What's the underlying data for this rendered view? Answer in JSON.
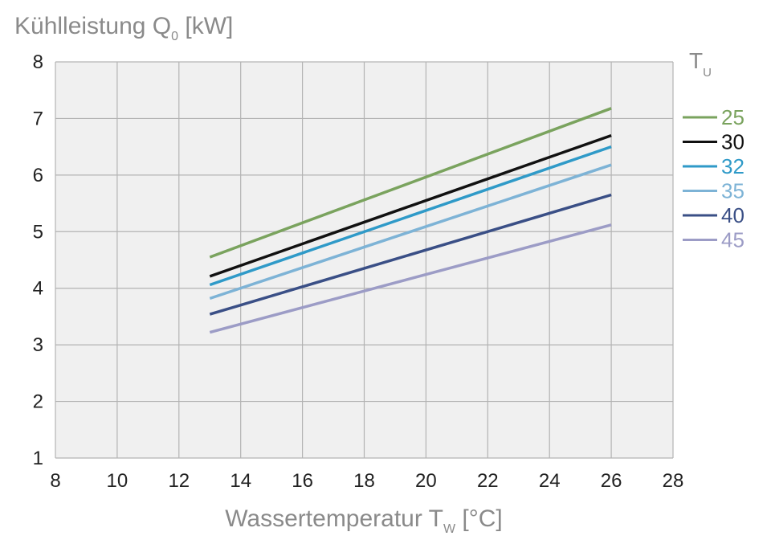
{
  "chart_data": {
    "type": "line",
    "title": "",
    "ylabel": {
      "main": "Kühlleistung Q",
      "sub": "0",
      "unit": " [kW]"
    },
    "xlabel": {
      "main": "Wassertemperatur T",
      "sub": "W",
      "unit": " [°C]"
    },
    "xlim": [
      8,
      28
    ],
    "ylim": [
      1,
      8
    ],
    "xticks": [
      8,
      10,
      12,
      14,
      16,
      18,
      20,
      22,
      24,
      26,
      28
    ],
    "yticks": [
      1,
      2,
      3,
      4,
      5,
      6,
      7,
      8
    ],
    "xtick_labels": [
      "8",
      "10",
      "12",
      "14",
      "16",
      "18",
      "20",
      "22",
      "24",
      "26",
      "28"
    ],
    "ytick_labels": [
      "1",
      "2",
      "3",
      "4",
      "5",
      "6",
      "7",
      "8"
    ],
    "grid": true,
    "legend": {
      "title_main": "T",
      "title_sub": "U",
      "position": "right"
    },
    "series": [
      {
        "name": "25",
        "color": "#7aa35e",
        "x": [
          13,
          26
        ],
        "y": [
          4.55,
          7.18
        ]
      },
      {
        "name": "30",
        "color": "#111111",
        "x": [
          13,
          26
        ],
        "y": [
          4.21,
          6.7
        ]
      },
      {
        "name": "32",
        "color": "#2f9ac8",
        "x": [
          13,
          26
        ],
        "y": [
          4.06,
          6.5
        ]
      },
      {
        "name": "35",
        "color": "#7db3d6",
        "x": [
          13,
          26
        ],
        "y": [
          3.82,
          6.18
        ]
      },
      {
        "name": "40",
        "color": "#3a4f86",
        "x": [
          13,
          26
        ],
        "y": [
          3.54,
          5.65
        ]
      },
      {
        "name": "45",
        "color": "#9c9cc6",
        "x": [
          13,
          26
        ],
        "y": [
          3.22,
          5.12
        ]
      }
    ]
  },
  "colors": {
    "plot_background": "#f0f0f0",
    "grid": "#b3b3b3",
    "axis_label": "#8a8a8a"
  }
}
